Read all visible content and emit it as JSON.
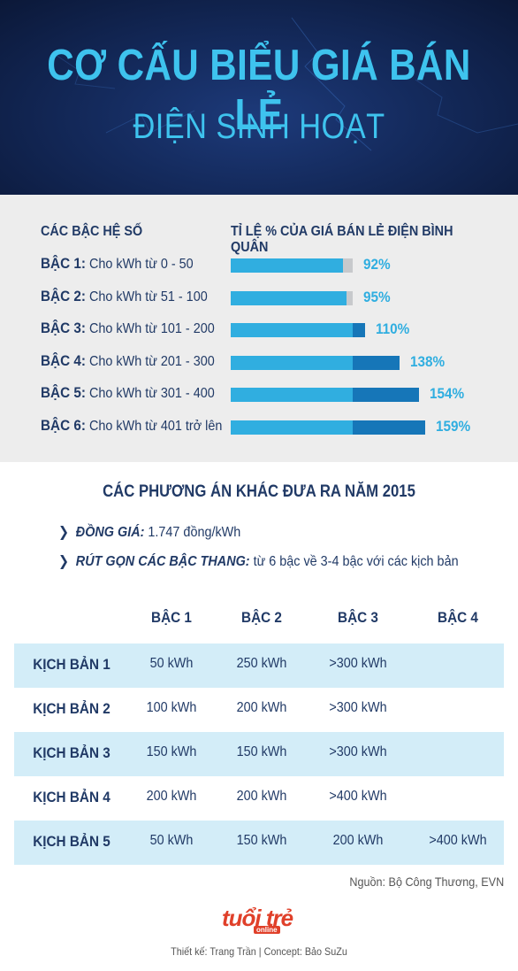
{
  "header": {
    "title_line1": "CƠ CẤU BIỂU GIÁ BÁN LẺ",
    "title_line2": "ĐIỆN SINH HOẠT",
    "bg_color": "#142a5c",
    "title_color": "#3ec3ee"
  },
  "chart_data": {
    "type": "bar",
    "orientation": "horizontal",
    "column_headers": {
      "left": "CÁC BẬC HỆ SỐ",
      "right": "TỈ LỆ % CỦA GIÁ BÁN LẺ ĐIỆN BÌNH QUÂN"
    },
    "categories": [
      {
        "tier": "BẬC 1:",
        "desc": "Cho kWh từ 0 - 50"
      },
      {
        "tier": "BẬC 2:",
        "desc": "Cho kWh từ 51 - 100"
      },
      {
        "tier": "BẬC 3:",
        "desc": "Cho kWh từ 101 - 200"
      },
      {
        "tier": "BẬC 4:",
        "desc": "Cho kWh từ 201 - 300"
      },
      {
        "tier": "BẬC 5:",
        "desc": "Cho kWh từ 301 - 400"
      },
      {
        "tier": "BẬC 6:",
        "desc": "Cho kWh từ 401 trở lên"
      }
    ],
    "values": [
      92,
      95,
      110,
      138,
      154,
      159
    ],
    "value_labels": [
      "92%",
      "95%",
      "110%",
      "138%",
      "154%",
      "159%"
    ],
    "baseline": 100,
    "colors": {
      "base": "#30aee0",
      "over": "#1676b8",
      "track": "#c7c9cc"
    }
  },
  "options": {
    "title": "CÁC PHƯƠNG ÁN KHÁC ĐƯA RA NĂM 2015",
    "items": [
      {
        "arrow": "❯",
        "label": "ĐỒNG GIÁ:",
        "text": " 1.747 đồng/kWh"
      },
      {
        "arrow": "❯",
        "label": "RÚT GỌN CÁC BẬC THANG:",
        "text": " từ 6 bậc về 3-4 bậc với các kịch bản"
      }
    ]
  },
  "table": {
    "headers": [
      "BẬC 1",
      "BẬC 2",
      "BẬC 3",
      "BẬC 4"
    ],
    "rows": [
      {
        "label": "KỊCH BẢN 1",
        "cells": [
          "50 kWh",
          "250 kWh",
          ">300 kWh",
          ""
        ]
      },
      {
        "label": "KỊCH BẢN 2",
        "cells": [
          "100 kWh",
          "200 kWh",
          ">300 kWh",
          ""
        ]
      },
      {
        "label": "KỊCH BẢN 3",
        "cells": [
          "150 kWh",
          "150 kWh",
          ">300 kWh",
          ""
        ]
      },
      {
        "label": "KỊCH BẢN 4",
        "cells": [
          "200 kWh",
          "200 kWh",
          ">400 kWh",
          ""
        ]
      },
      {
        "label": "KỊCH BẢN 5",
        "cells": [
          "50 kWh",
          "150 kWh",
          "200 kWh",
          ">400 kWh"
        ]
      }
    ],
    "row_color_odd": "#d3edf8"
  },
  "footer": {
    "source": "Nguồn: Bộ Công Thương, EVN",
    "logo": "tuổi trẻ",
    "logo_sub": "online",
    "credit": "Thiết kế: Trang Trần | Concept: Bảo SuZu"
  }
}
